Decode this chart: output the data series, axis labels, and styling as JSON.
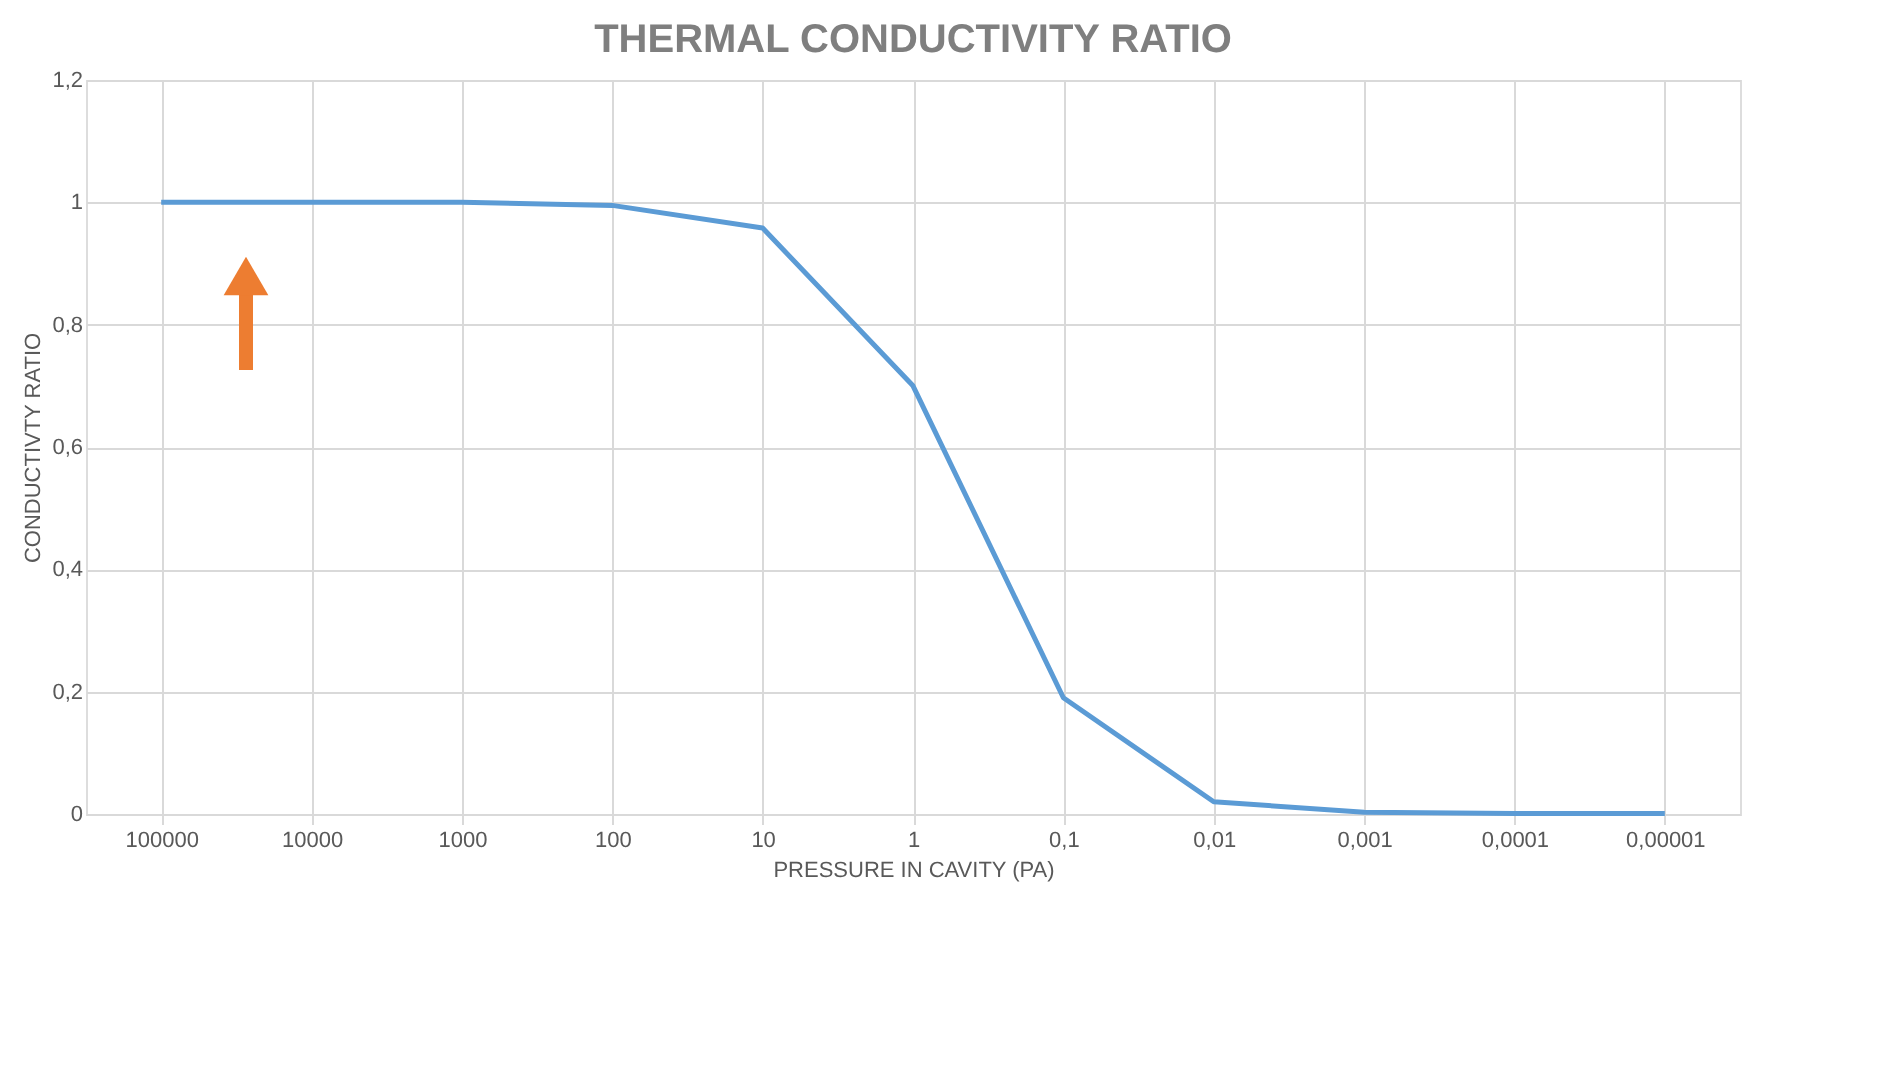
{
  "chart_data": {
    "type": "line",
    "title": "THERMAL CONDUCTIVITY RATIO",
    "xlabel": "PRESSURE IN CAVITY (PA)",
    "ylabel": "CONDUCTIVTY RATIO",
    "categories": [
      "100000",
      "10000",
      "1000",
      "100",
      "10",
      "1",
      "0,1",
      "0,01",
      "0,001",
      "0,0001",
      "0,00001"
    ],
    "series": [
      {
        "color": "#5b9bd5",
        "values": [
          1.0,
          1.0,
          1.0,
          0.995,
          0.958,
          0.7,
          0.19,
          0.02,
          0.003,
          0.001,
          0.001
        ]
      }
    ],
    "ylim": [
      0,
      1.2
    ],
    "yticks": [
      0,
      {
        "value": 0.2,
        "label": "0,2"
      },
      {
        "value": 0.4,
        "label": "0,4"
      },
      {
        "value": 0.6,
        "label": "0,6"
      },
      {
        "value": 0.8,
        "label": "0,8"
      },
      1,
      {
        "value": 1.2,
        "label": "1,2"
      }
    ],
    "grid": true,
    "marker": "none",
    "line_style": "solid",
    "legend": false
  }
}
